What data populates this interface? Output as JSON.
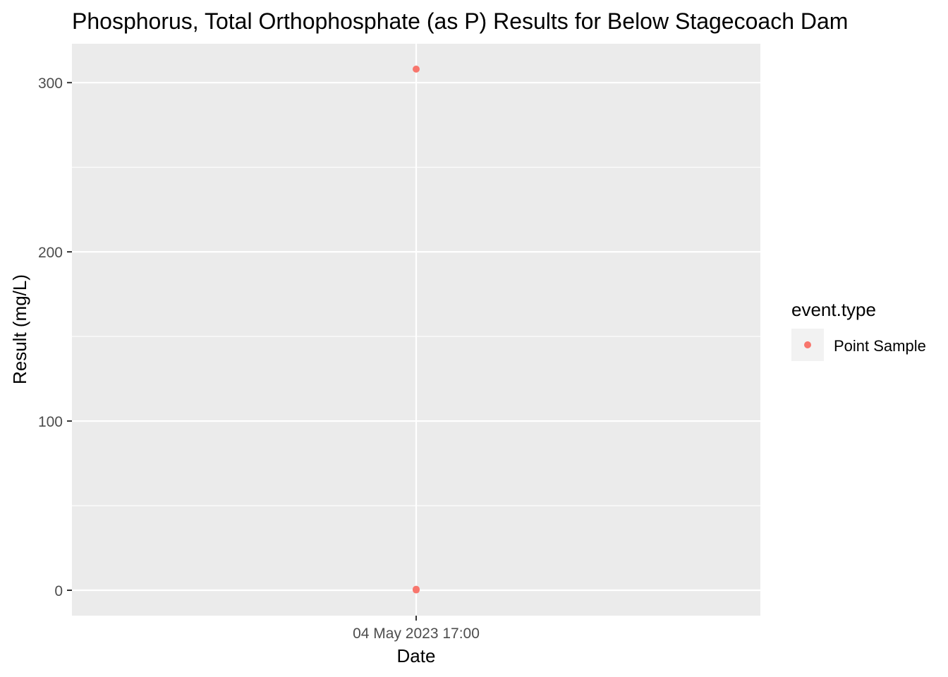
{
  "chart_data": {
    "type": "scatter",
    "title": "Phosphorus, Total Orthophosphate (as P) Results for Below Stagecoach Dam",
    "xlabel": "Date",
    "ylabel": "Result (mg/L)",
    "x_ticks": [
      "04 May 2023 17:00"
    ],
    "y_ticks": [
      0,
      100,
      200,
      300
    ],
    "ylim": [
      -15,
      323
    ],
    "grid": true,
    "legend": {
      "title": "event.type",
      "position": "right",
      "entries": [
        "Point Sample"
      ]
    },
    "series": [
      {
        "name": "Point Sample",
        "color": "#F8766D",
        "points": [
          {
            "x": "04 May 2023 17:00",
            "y": 308
          },
          {
            "x": "04 May 2023 17:00",
            "y": 0.6
          },
          {
            "x": "04 May 2023 17:00",
            "y": 0.2
          }
        ]
      }
    ]
  }
}
